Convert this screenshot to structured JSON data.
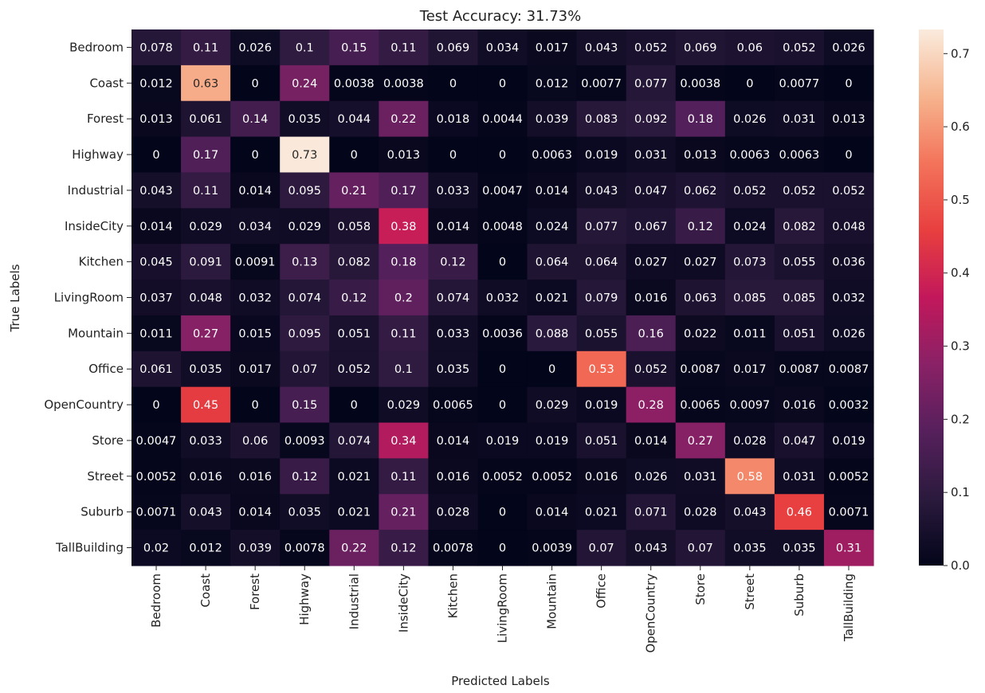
{
  "chart_data": {
    "type": "heatmap",
    "title": "Test Accuracy: 31.73%",
    "xlabel": "Predicted Labels",
    "ylabel": "True Labels",
    "categories": [
      "Bedroom",
      "Coast",
      "Forest",
      "Highway",
      "Industrial",
      "InsideCity",
      "Kitchen",
      "LivingRoom",
      "Mountain",
      "Office",
      "OpenCountry",
      "Store",
      "Street",
      "Suburb",
      "TallBuilding"
    ],
    "row_labels": [
      "Bedroom",
      "Coast",
      "Forest",
      "Highway",
      "Industrial",
      "InsideCity",
      "Kitchen",
      "LivingRoom",
      "Mountain",
      "Office",
      "OpenCountry",
      "Store",
      "Street",
      "Suburb",
      "TallBuilding"
    ],
    "cells": [
      [
        "0.078",
        "0.11",
        "0.026",
        "0.1",
        "0.15",
        "0.11",
        "0.069",
        "0.034",
        "0.017",
        "0.043",
        "0.052",
        "0.069",
        "0.06",
        "0.052",
        "0.026"
      ],
      [
        "0.012",
        "0.63",
        "0",
        "0.24",
        "0.0038",
        "0.0038",
        "0",
        "0",
        "0.012",
        "0.0077",
        "0.077",
        "0.0038",
        "0",
        "0.0077",
        "0"
      ],
      [
        "0.013",
        "0.061",
        "0.14",
        "0.035",
        "0.044",
        "0.22",
        "0.018",
        "0.0044",
        "0.039",
        "0.083",
        "0.092",
        "0.18",
        "0.026",
        "0.031",
        "0.013"
      ],
      [
        "0",
        "0.17",
        "0",
        "0.73",
        "0",
        "0.013",
        "0",
        "0",
        "0.0063",
        "0.019",
        "0.031",
        "0.013",
        "0.0063",
        "0.0063",
        "0"
      ],
      [
        "0.043",
        "0.11",
        "0.014",
        "0.095",
        "0.21",
        "0.17",
        "0.033",
        "0.0047",
        "0.014",
        "0.043",
        "0.047",
        "0.062",
        "0.052",
        "0.052",
        "0.052"
      ],
      [
        "0.014",
        "0.029",
        "0.034",
        "0.029",
        "0.058",
        "0.38",
        "0.014",
        "0.0048",
        "0.024",
        "0.077",
        "0.067",
        "0.12",
        "0.024",
        "0.082",
        "0.048"
      ],
      [
        "0.045",
        "0.091",
        "0.0091",
        "0.13",
        "0.082",
        "0.18",
        "0.12",
        "0",
        "0.064",
        "0.064",
        "0.027",
        "0.027",
        "0.073",
        "0.055",
        "0.036"
      ],
      [
        "0.037",
        "0.048",
        "0.032",
        "0.074",
        "0.12",
        "0.2",
        "0.074",
        "0.032",
        "0.021",
        "0.079",
        "0.016",
        "0.063",
        "0.085",
        "0.085",
        "0.032"
      ],
      [
        "0.011",
        "0.27",
        "0.015",
        "0.095",
        "0.051",
        "0.11",
        "0.033",
        "0.0036",
        "0.088",
        "0.055",
        "0.16",
        "0.022",
        "0.011",
        "0.051",
        "0.026"
      ],
      [
        "0.061",
        "0.035",
        "0.017",
        "0.07",
        "0.052",
        "0.1",
        "0.035",
        "0",
        "0",
        "0.53",
        "0.052",
        "0.0087",
        "0.017",
        "0.0087",
        "0.0087"
      ],
      [
        "0",
        "0.45",
        "0",
        "0.15",
        "0",
        "0.029",
        "0.0065",
        "0",
        "0.029",
        "0.019",
        "0.28",
        "0.0065",
        "0.0097",
        "0.016",
        "0.0032"
      ],
      [
        "0.0047",
        "0.033",
        "0.06",
        "0.0093",
        "0.074",
        "0.34",
        "0.014",
        "0.019",
        "0.019",
        "0.051",
        "0.014",
        "0.27",
        "0.028",
        "0.047",
        "0.019"
      ],
      [
        "0.0052",
        "0.016",
        "0.016",
        "0.12",
        "0.021",
        "0.11",
        "0.016",
        "0.0052",
        "0.0052",
        "0.016",
        "0.026",
        "0.031",
        "0.58",
        "0.031",
        "0.0052"
      ],
      [
        "0.0071",
        "0.043",
        "0.014",
        "0.035",
        "0.021",
        "0.21",
        "0.028",
        "0",
        "0.014",
        "0.021",
        "0.071",
        "0.028",
        "0.043",
        "0.46",
        "0.0071"
      ],
      [
        "0.02",
        "0.012",
        "0.039",
        "0.0078",
        "0.22",
        "0.12",
        "0.0078",
        "0",
        "0.0039",
        "0.07",
        "0.043",
        "0.07",
        "0.035",
        "0.035",
        "0.31"
      ]
    ],
    "colorbar": {
      "range": [
        0,
        0.733
      ],
      "ticks": [
        "0.0",
        "0.1",
        "0.2",
        "0.3",
        "0.4",
        "0.5",
        "0.6",
        "0.7"
      ]
    },
    "colormap": "rocket",
    "grid": false,
    "legend": "colorbar-right"
  }
}
